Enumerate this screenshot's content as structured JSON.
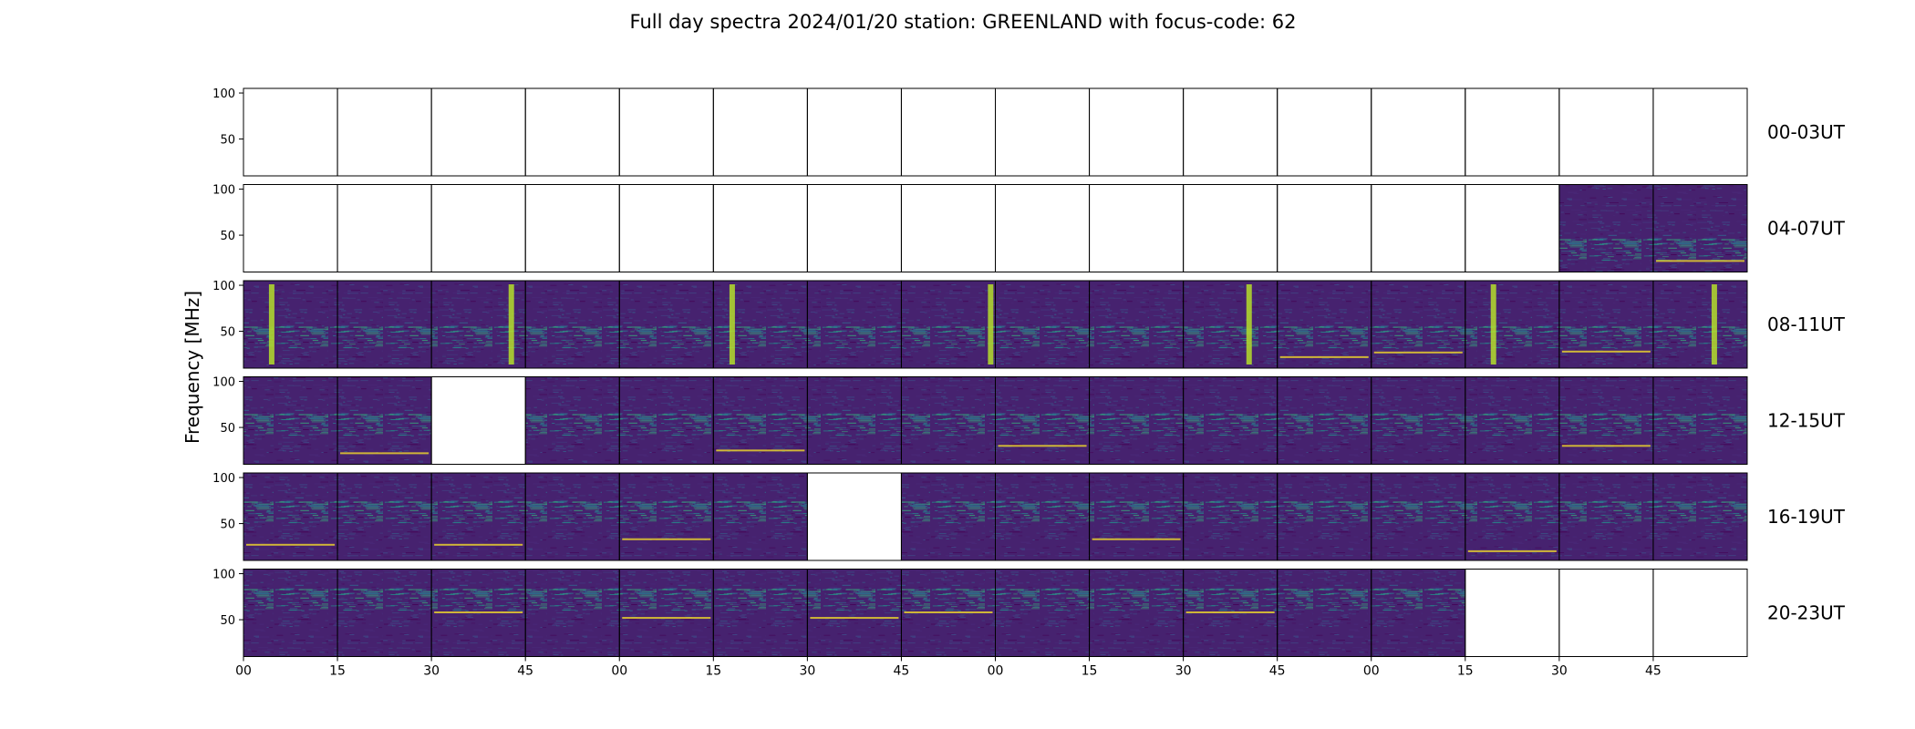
{
  "chart_data": {
    "type": "heatmap",
    "title": "Full day spectra 2024/01/20 station: GREENLAND with focus-code: 62",
    "ylabel": "Frequency [MHz]",
    "xlabel": "",
    "ylim": [
      10,
      105
    ],
    "yticks": [
      50,
      100
    ],
    "colormap": "viridis",
    "grid": false,
    "xtick_labels": [
      "00",
      "15",
      "30",
      "45",
      "00",
      "15",
      "30",
      "45",
      "00",
      "15",
      "30",
      "45",
      "00",
      "15",
      "30",
      "45"
    ],
    "rows": [
      {
        "label": "00-03UT",
        "panels": [
          0,
          0,
          0,
          0,
          0,
          0,
          0,
          0,
          0,
          0,
          0,
          0,
          0,
          0,
          0,
          0
        ],
        "bursts": [],
        "lines": []
      },
      {
        "label": "04-07UT",
        "panels": [
          0,
          0,
          0,
          0,
          0,
          0,
          0,
          0,
          0,
          0,
          0,
          0,
          0,
          0,
          1,
          1
        ],
        "bursts": [],
        "lines": [
          {
            "panel": 15,
            "freq": 22
          }
        ]
      },
      {
        "label": "08-11UT",
        "panels": [
          1,
          1,
          1,
          1,
          1,
          1,
          1,
          1,
          1,
          1,
          1,
          1,
          1,
          1,
          1,
          1
        ],
        "bursts": [
          {
            "panel": 0,
            "pos": 0.3
          },
          {
            "panel": 2,
            "pos": 0.85
          },
          {
            "panel": 5,
            "pos": 0.2
          },
          {
            "panel": 7,
            "pos": 0.95
          },
          {
            "panel": 10,
            "pos": 0.7
          },
          {
            "panel": 13,
            "pos": 0.3
          },
          {
            "panel": 15,
            "pos": 0.65
          }
        ],
        "lines": [
          {
            "panel": 11,
            "freq": 22
          },
          {
            "panel": 12,
            "freq": 27
          },
          {
            "panel": 14,
            "freq": 28
          }
        ]
      },
      {
        "label": "12-15UT",
        "panels": [
          1,
          1,
          0,
          1,
          1,
          1,
          1,
          1,
          1,
          1,
          1,
          1,
          1,
          1,
          1,
          1
        ],
        "bursts": [],
        "lines": [
          {
            "panel": 1,
            "freq": 22
          },
          {
            "panel": 5,
            "freq": 25
          },
          {
            "panel": 8,
            "freq": 30
          },
          {
            "panel": 14,
            "freq": 30
          }
        ]
      },
      {
        "label": "16-19UT",
        "panels": [
          1,
          1,
          1,
          1,
          1,
          1,
          0,
          1,
          1,
          1,
          1,
          1,
          1,
          1,
          1,
          1
        ],
        "bursts": [],
        "lines": [
          {
            "panel": 0,
            "freq": 27
          },
          {
            "panel": 2,
            "freq": 27
          },
          {
            "panel": 4,
            "freq": 33
          },
          {
            "panel": 9,
            "freq": 33
          },
          {
            "panel": 13,
            "freq": 20
          }
        ]
      },
      {
        "label": "20-23UT",
        "panels": [
          1,
          1,
          1,
          1,
          1,
          1,
          1,
          1,
          1,
          1,
          1,
          1,
          1,
          0,
          0,
          0
        ],
        "bursts": [],
        "lines": [
          {
            "panel": 2,
            "freq": 58
          },
          {
            "panel": 7,
            "freq": 58
          },
          {
            "panel": 10,
            "freq": 58
          },
          {
            "panel": 4,
            "freq": 52
          },
          {
            "panel": 6,
            "freq": 52
          }
        ]
      }
    ]
  }
}
